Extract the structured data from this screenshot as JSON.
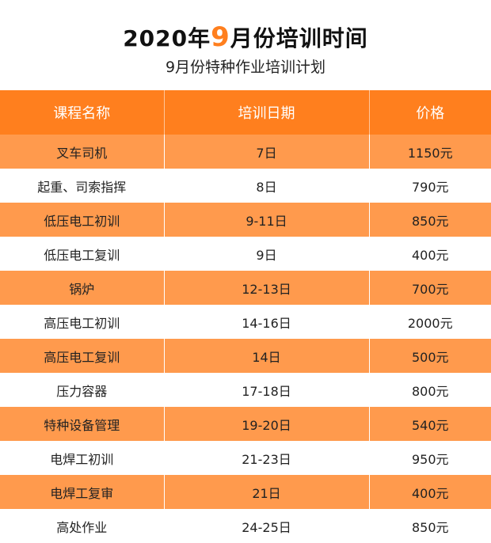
{
  "title": {
    "prefix": "2020年",
    "accent": "9",
    "suffix": "月份培训时间"
  },
  "subtitle": "9月份特种作业培训计划",
  "table": {
    "headers": [
      "课程名称",
      "培训日期",
      "价格"
    ],
    "rows": [
      {
        "course": "叉车司机",
        "date": "7日",
        "price": "1150元"
      },
      {
        "course": "起重、司索指挥",
        "date": "8日",
        "price": "790元"
      },
      {
        "course": "低压电工初训",
        "date": "9-11日",
        "price": "850元"
      },
      {
        "course": "低压电工复训",
        "date": "9日",
        "price": "400元"
      },
      {
        "course": "锅炉",
        "date": "12-13日",
        "price": "700元"
      },
      {
        "course": "高压电工初训",
        "date": "14-16日",
        "price": "2000元"
      },
      {
        "course": "高压电工复训",
        "date": "14日",
        "price": "500元"
      },
      {
        "course": "压力容器",
        "date": "17-18日",
        "price": "800元"
      },
      {
        "course": "特种设备管理",
        "date": "19-20日",
        "price": "540元"
      },
      {
        "course": "电焊工初训",
        "date": "21-23日",
        "price": "950元"
      },
      {
        "course": "电焊工复审",
        "date": "21日",
        "price": "400元"
      },
      {
        "course": "高处作业",
        "date": "24-25日",
        "price": "850元"
      }
    ]
  },
  "colors": {
    "accent": "#ff7f1e",
    "stripe": "#ff9a4d"
  }
}
